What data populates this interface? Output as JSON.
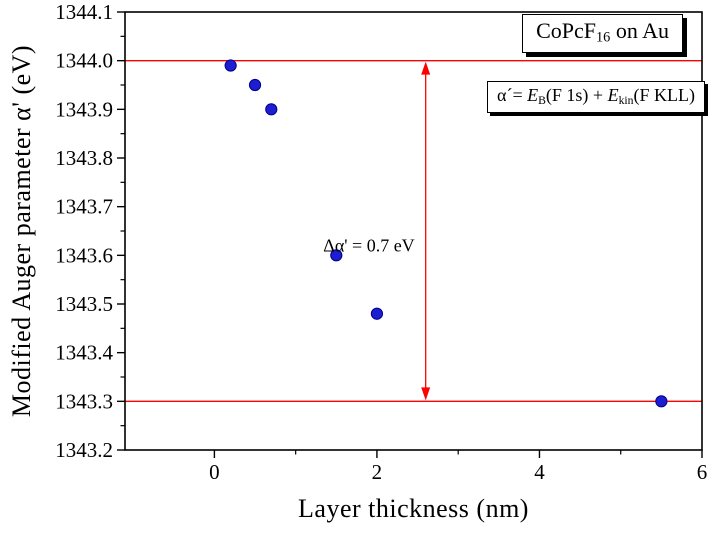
{
  "chart_data": {
    "type": "scatter",
    "title_box": {
      "prefix": "CoPcF",
      "subscript": "16",
      "suffix": " on Au"
    },
    "formula_box": {
      "segments": [
        {
          "t": "α´= "
        },
        {
          "t": "E"
        },
        {
          "t": "B"
        },
        {
          "t": "(F 1s) + "
        },
        {
          "t": "E"
        },
        {
          "t": "kin"
        },
        {
          "t": "(F KLL)"
        }
      ]
    },
    "xlabel": "Layer thickness (nm)",
    "ylabel": "Modified Auger parameter α' (eV)",
    "points": {
      "x": [
        0.2,
        0.5,
        0.7,
        1.5,
        2.0,
        5.5
      ],
      "y": [
        1343.99,
        1343.95,
        1343.9,
        1343.6,
        1343.48,
        1343.3
      ]
    },
    "marker_color": "#1d1dd1",
    "marker_edge_color": "#00008b",
    "axis_color": "#000000",
    "xlim": [
      -1.1,
      6
    ],
    "ylim": [
      1343.2,
      1344.1
    ],
    "xticks": {
      "values": [
        0,
        2,
        4,
        6
      ],
      "labels": [
        "0",
        "2",
        "4",
        "6"
      ]
    },
    "x_minor": [
      1,
      3,
      5
    ],
    "yticks": {
      "values": [
        1344.1,
        1344.0,
        1343.9,
        1343.8,
        1343.7,
        1343.6,
        1343.5,
        1343.4,
        1343.3,
        1343.2
      ],
      "labels": [
        "1344.1",
        "1344.0",
        "1343.9",
        "1343.8",
        "1343.7",
        "1343.6",
        "1343.5",
        "1343.4",
        "1343.3",
        "1343.2"
      ]
    },
    "ref_lines": {
      "values": [
        1344.0,
        1343.3
      ],
      "color": "#ff0000"
    },
    "arrow": {
      "x": 2.6,
      "y_from": 1343.3,
      "y_to": 1344.0,
      "color": "#ff0000"
    },
    "annotation": {
      "text": "Δα' = 0.7 eV",
      "x": 2.6,
      "y": 1343.62
    },
    "grid": false,
    "legend_position": "none"
  }
}
